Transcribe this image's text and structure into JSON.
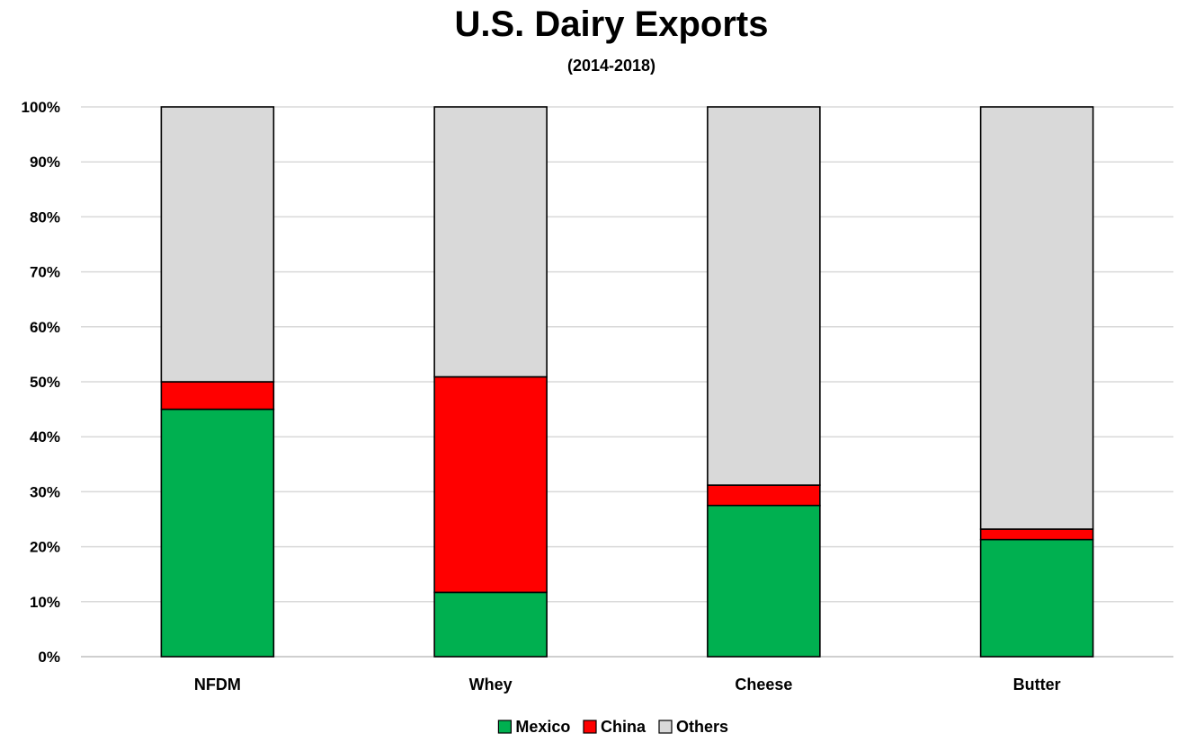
{
  "chart_data": {
    "type": "bar",
    "stacked": true,
    "title": "U.S. Dairy Exports",
    "subtitle": "(2014-2018)",
    "categories": [
      "NFDM",
      "Whey",
      "Cheese",
      "Butter"
    ],
    "series": [
      {
        "name": "Mexico",
        "color": "#00b050",
        "values": [
          45,
          11.7,
          27.5,
          21.3
        ]
      },
      {
        "name": "China",
        "color": "#ff0000",
        "values": [
          5,
          39.2,
          3.7,
          1.9
        ]
      },
      {
        "name": "Others",
        "color": "#d9d9d9",
        "values": [
          50,
          49.1,
          68.8,
          76.8
        ]
      }
    ],
    "yticks": [
      "0%",
      "10%",
      "20%",
      "30%",
      "40%",
      "50%",
      "60%",
      "70%",
      "80%",
      "90%",
      "100%"
    ],
    "ylim": [
      0,
      100
    ],
    "grid": true,
    "legend_position": "bottom"
  }
}
